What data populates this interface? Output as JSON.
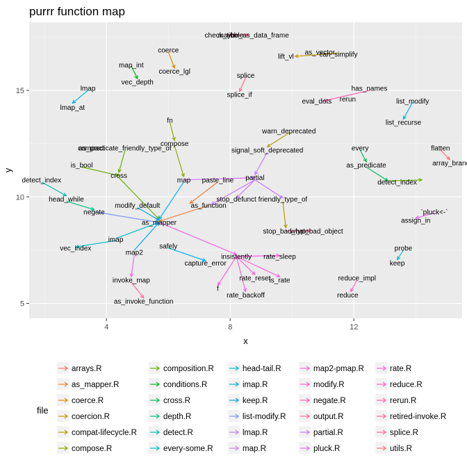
{
  "chart_data": {
    "type": "network",
    "title": "purrr function map",
    "xlabel": "x",
    "ylabel": "y",
    "xlim": [
      1.5,
      15.5
    ],
    "ylim": [
      4.3,
      18.2
    ],
    "x_ticks": [
      4,
      8,
      12
    ],
    "y_ticks": [
      5,
      10,
      15
    ],
    "grid": true,
    "legend": {
      "title": "file",
      "placement": "bottom",
      "entries": [
        {
          "name": "arrays.R",
          "color": "#F8766D"
        },
        {
          "name": "as_mapper.R",
          "color": "#EC8239"
        },
        {
          "name": "coerce.R",
          "color": "#DB8E00"
        },
        {
          "name": "coercion.R",
          "color": "#C79800"
        },
        {
          "name": "compat-lifecycle.R",
          "color": "#AEA200"
        },
        {
          "name": "compose.R",
          "color": "#8FAA00"
        },
        {
          "name": "composition.R",
          "color": "#64B200"
        },
        {
          "name": "conditions.R",
          "color": "#00B81B"
        },
        {
          "name": "cross.R",
          "color": "#00BD5C"
        },
        {
          "name": "depth.R",
          "color": "#00C085"
        },
        {
          "name": "detect.R",
          "color": "#00C1A7"
        },
        {
          "name": "every-some.R",
          "color": "#00BFC4"
        },
        {
          "name": "head-tail.R",
          "color": "#00BADE"
        },
        {
          "name": "imap.R",
          "color": "#00B2F3"
        },
        {
          "name": "keep.R",
          "color": "#00A6FF"
        },
        {
          "name": "list-modify.R",
          "color": "#7C96FF"
        },
        {
          "name": "lmap.R",
          "color": "#B385FF"
        },
        {
          "name": "map.R",
          "color": "#D874FD"
        },
        {
          "name": "map2-pmap.R",
          "color": "#EF67EB"
        },
        {
          "name": "modify.R",
          "color": "#FD61D3"
        },
        {
          "name": "negate.R",
          "color": "#FF63B6"
        },
        {
          "name": "output.R",
          "color": "#FF6B94"
        },
        {
          "name": "partial.R",
          "color": "#C77CFF"
        },
        {
          "name": "pluck.R",
          "color": "#E76BF3"
        },
        {
          "name": "rate.R",
          "color": "#FA62DB"
        },
        {
          "name": "reduce.R",
          "color": "#FF61C3"
        },
        {
          "name": "rerun.R",
          "color": "#FF64B0"
        },
        {
          "name": "retired-invoke.R",
          "color": "#FF689F"
        },
        {
          "name": "splice.R",
          "color": "#FF6C91"
        },
        {
          "name": "utils.R",
          "color": "#FC717F"
        }
      ]
    },
    "nodes": [
      {
        "label": "check_tibble",
        "x": 7.8,
        "y": 17.6
      },
      {
        "label": "maybe_as_data_frame",
        "x": 8.75,
        "y": 17.6
      },
      {
        "label": "as_vector",
        "x": 10.9,
        "y": 16.8
      },
      {
        "label": "can_simplify",
        "x": 11.5,
        "y": 16.7
      },
      {
        "label": "lift_vl",
        "x": 9.8,
        "y": 16.6
      },
      {
        "label": "coerce",
        "x": 6.0,
        "y": 16.9
      },
      {
        "label": "coerce_lgl",
        "x": 6.2,
        "y": 15.9
      },
      {
        "label": "map_int",
        "x": 4.8,
        "y": 16.2
      },
      {
        "label": "vec_depth",
        "x": 5.0,
        "y": 15.4
      },
      {
        "label": "splice",
        "x": 8.5,
        "y": 15.7
      },
      {
        "label": "splice_if",
        "x": 8.3,
        "y": 14.8
      },
      {
        "label": "lmap",
        "x": 3.4,
        "y": 15.1
      },
      {
        "label": "lmap_at",
        "x": 2.9,
        "y": 14.2
      },
      {
        "label": "has_names",
        "x": 12.5,
        "y": 15.1
      },
      {
        "label": "eval_dots",
        "x": 10.8,
        "y": 14.5
      },
      {
        "label": "rerun",
        "x": 11.8,
        "y": 14.6
      },
      {
        "label": "list_modify",
        "x": 13.9,
        "y": 14.5
      },
      {
        "label": "list_recurse",
        "x": 13.6,
        "y": 13.5
      },
      {
        "label": "fn",
        "x": 6.05,
        "y": 13.6
      },
      {
        "label": "compose",
        "x": 6.2,
        "y": 12.5
      },
      {
        "label": "warn_deprecated",
        "x": 9.9,
        "y": 13.1
      },
      {
        "label": "signal_soft_deprecated",
        "x": 9.2,
        "y": 12.2
      },
      {
        "label": "as_predicate_friendly_type_of",
        "x": 4.6,
        "y": 12.3
      },
      {
        "label": "compact",
        "x": 3.5,
        "y": 12.3
      },
      {
        "label": "every",
        "x": 12.2,
        "y": 12.3
      },
      {
        "label": "flatten",
        "x": 14.8,
        "y": 12.3
      },
      {
        "label": "array_branch",
        "x": 15.2,
        "y": 11.6
      },
      {
        "label": "is_bool",
        "x": 3.2,
        "y": 11.5
      },
      {
        "label": "as_predicate",
        "x": 12.4,
        "y": 11.5
      },
      {
        "label": "cross",
        "x": 4.4,
        "y": 11.0
      },
      {
        "label": "map",
        "x": 6.5,
        "y": 10.8
      },
      {
        "label": "paste_line",
        "x": 7.6,
        "y": 10.8
      },
      {
        "label": "partial",
        "x": 8.8,
        "y": 10.9
      },
      {
        "label": "detect_index",
        "x": 13.4,
        "y": 10.7
      },
      {
        "label": "detect_index",
        "x": 1.9,
        "y": 10.8
      },
      {
        "label": "head_while",
        "x": 2.7,
        "y": 9.9
      },
      {
        "label": "stop_defunct",
        "x": 8.2,
        "y": 9.9
      },
      {
        "label": "friendly_type_of",
        "x": 9.7,
        "y": 9.9
      },
      {
        "label": "as_function",
        "x": 7.3,
        "y": 9.6
      },
      {
        "label": "modify_default",
        "x": 5.0,
        "y": 9.6
      },
      {
        "label": "negate",
        "x": 3.6,
        "y": 9.3
      },
      {
        "label": "`pluck<-`",
        "x": 14.6,
        "y": 9.3
      },
      {
        "label": "assign_in",
        "x": 14.0,
        "y": 8.9
      },
      {
        "label": "as_mapper",
        "x": 5.7,
        "y": 8.8
      },
      {
        "label": "stop_bad_type",
        "x": 9.8,
        "y": 8.4
      },
      {
        "label": "what_bad_object",
        "x": 10.8,
        "y": 8.4
      },
      {
        "label": "imap",
        "x": 4.3,
        "y": 8.0
      },
      {
        "label": "safely",
        "x": 6.0,
        "y": 7.7
      },
      {
        "label": "vec_index",
        "x": 3.0,
        "y": 7.6
      },
      {
        "label": "probe",
        "x": 13.6,
        "y": 7.6
      },
      {
        "label": "map2",
        "x": 4.9,
        "y": 7.4
      },
      {
        "label": "insistently",
        "x": 8.2,
        "y": 7.2
      },
      {
        "label": "rate_sleep",
        "x": 9.6,
        "y": 7.2
      },
      {
        "label": "capture_error",
        "x": 7.2,
        "y": 6.9
      },
      {
        "label": "keep",
        "x": 13.4,
        "y": 6.9
      },
      {
        "label": "invoke_map",
        "x": 4.8,
        "y": 6.1
      },
      {
        "label": "rate_reset",
        "x": 8.8,
        "y": 6.2
      },
      {
        "label": "is_rate",
        "x": 9.6,
        "y": 6.1
      },
      {
        "label": "reduce_impl",
        "x": 12.1,
        "y": 6.2
      },
      {
        "label": "f",
        "x": 7.6,
        "y": 5.7
      },
      {
        "label": "rate_backoff",
        "x": 8.5,
        "y": 5.4
      },
      {
        "label": "reduce",
        "x": 11.8,
        "y": 5.4
      },
      {
        "label": "as_invoke_function",
        "x": 5.2,
        "y": 5.1
      }
    ],
    "edges": [
      {
        "from": [
          7.9,
          17.6
        ],
        "to": [
          8.6,
          17.6
        ],
        "color": "#FF6C91"
      },
      {
        "from": [
          11.5,
          16.75
        ],
        "to": [
          10.1,
          16.6
        ],
        "color": "#C79800"
      },
      {
        "from": [
          6.0,
          16.8
        ],
        "to": [
          6.2,
          16.05
        ],
        "color": "#DB8E00"
      },
      {
        "from": [
          4.8,
          16.15
        ],
        "to": [
          5.0,
          15.55
        ],
        "color": "#00B81B"
      },
      {
        "from": [
          8.5,
          15.6
        ],
        "to": [
          8.3,
          14.95
        ],
        "color": "#FF6C91"
      },
      {
        "from": [
          3.4,
          15.0
        ],
        "to": [
          2.9,
          14.4
        ],
        "color": "#00B2F3"
      },
      {
        "from": [
          12.5,
          15.0
        ],
        "to": [
          11.0,
          14.5
        ],
        "color": "#FF64B0"
      },
      {
        "from": [
          13.9,
          14.45
        ],
        "to": [
          13.6,
          13.65
        ],
        "color": "#00BADE"
      },
      {
        "from": [
          6.05,
          13.5
        ],
        "to": [
          6.2,
          12.65
        ],
        "color": "#8FAA00"
      },
      {
        "from": [
          6.2,
          12.4
        ],
        "to": [
          6.5,
          10.95
        ],
        "color": "#8FAA00"
      },
      {
        "from": [
          9.9,
          13.0
        ],
        "to": [
          9.2,
          12.35
        ],
        "color": "#AEA200"
      },
      {
        "from": [
          9.2,
          12.1
        ],
        "to": [
          8.8,
          11.05
        ],
        "color": "#C77CFF"
      },
      {
        "from": [
          12.2,
          12.2
        ],
        "to": [
          12.4,
          11.65
        ],
        "color": "#00BD5C"
      },
      {
        "from": [
          12.4,
          11.4
        ],
        "to": [
          13.1,
          10.75
        ],
        "color": "#00BD5C"
      },
      {
        "from": [
          13.1,
          10.75
        ],
        "to": [
          14.2,
          10.8
        ],
        "color": "#64B200"
      },
      {
        "from": [
          14.8,
          12.2
        ],
        "to": [
          15.1,
          11.75
        ],
        "color": "#F8766D"
      },
      {
        "from": [
          3.2,
          11.4
        ],
        "to": [
          4.4,
          11.0
        ],
        "color": "#64B200"
      },
      {
        "from": [
          4.4,
          10.9
        ],
        "to": [
          5.7,
          8.95
        ],
        "color": "#64B200"
      },
      {
        "from": [
          4.6,
          12.2
        ],
        "to": [
          4.4,
          11.15
        ],
        "color": "#64B200"
      },
      {
        "from": [
          1.9,
          10.7
        ],
        "to": [
          2.7,
          10.05
        ],
        "color": "#00C1A7"
      },
      {
        "from": [
          2.7,
          9.8
        ],
        "to": [
          3.6,
          9.4
        ],
        "color": "#00C085"
      },
      {
        "from": [
          3.6,
          9.3
        ],
        "to": [
          5.7,
          8.8
        ],
        "color": "#7C96FF"
      },
      {
        "from": [
          5.0,
          9.5
        ],
        "to": [
          5.7,
          8.9
        ],
        "color": "#00A6FF"
      },
      {
        "from": [
          6.5,
          10.7
        ],
        "to": [
          5.7,
          8.95
        ],
        "color": "#00B2F3"
      },
      {
        "from": [
          6.5,
          10.8
        ],
        "to": [
          8.8,
          10.9
        ],
        "color": "#D874FD"
      },
      {
        "from": [
          7.6,
          10.7
        ],
        "to": [
          6.7,
          9.7
        ],
        "color": "#EC8239"
      },
      {
        "from": [
          7.3,
          9.6
        ],
        "to": [
          5.7,
          8.85
        ],
        "color": "#EC8239"
      },
      {
        "from": [
          8.8,
          10.8
        ],
        "to": [
          7.4,
          9.65
        ],
        "color": "#C77CFF"
      },
      {
        "from": [
          8.8,
          10.8
        ],
        "to": [
          8.2,
          9.95
        ],
        "color": "#C77CFF"
      },
      {
        "from": [
          8.8,
          10.8
        ],
        "to": [
          9.7,
          9.95
        ],
        "color": "#C77CFF"
      },
      {
        "from": [
          9.7,
          9.8
        ],
        "to": [
          9.8,
          8.55
        ],
        "color": "#AEA200"
      },
      {
        "from": [
          9.8,
          8.4
        ],
        "to": [
          10.6,
          8.4
        ],
        "color": "#FF6B94"
      },
      {
        "from": [
          4.3,
          7.95
        ],
        "to": [
          3.0,
          7.65
        ],
        "color": "#00BFC4"
      },
      {
        "from": [
          4.3,
          8.05
        ],
        "to": [
          5.7,
          8.8
        ],
        "color": "#00BFC4"
      },
      {
        "from": [
          4.9,
          7.5
        ],
        "to": [
          5.7,
          8.8
        ],
        "color": "#00B2F3"
      },
      {
        "from": [
          6.0,
          7.6
        ],
        "to": [
          7.2,
          7.0
        ],
        "color": "#00B2F3"
      },
      {
        "from": [
          5.7,
          8.8
        ],
        "to": [
          8.2,
          7.3
        ],
        "color": "#EF67EB"
      },
      {
        "from": [
          8.2,
          7.2
        ],
        "to": [
          9.6,
          7.25
        ],
        "color": "#FA62DB"
      },
      {
        "from": [
          8.2,
          7.2
        ],
        "to": [
          7.6,
          5.85
        ],
        "color": "#FA62DB"
      },
      {
        "from": [
          8.2,
          7.2
        ],
        "to": [
          8.5,
          5.55
        ],
        "color": "#FA62DB"
      },
      {
        "from": [
          8.2,
          7.2
        ],
        "to": [
          8.8,
          6.35
        ],
        "color": "#FA62DB"
      },
      {
        "from": [
          8.2,
          7.2
        ],
        "to": [
          9.6,
          6.25
        ],
        "color": "#FA62DB"
      },
      {
        "from": [
          4.9,
          7.3
        ],
        "to": [
          4.8,
          6.25
        ],
        "color": "#EF67EB"
      },
      {
        "from": [
          4.8,
          6.0
        ],
        "to": [
          5.2,
          5.25
        ],
        "color": "#FF689F"
      },
      {
        "from": [
          13.6,
          7.5
        ],
        "to": [
          13.4,
          7.05
        ],
        "color": "#00BADE"
      },
      {
        "from": [
          14.6,
          9.25
        ],
        "to": [
          14.0,
          9.0
        ],
        "color": "#E76BF3"
      },
      {
        "from": [
          12.1,
          6.1
        ],
        "to": [
          11.9,
          5.55
        ],
        "color": "#FF61C3"
      }
    ]
  }
}
